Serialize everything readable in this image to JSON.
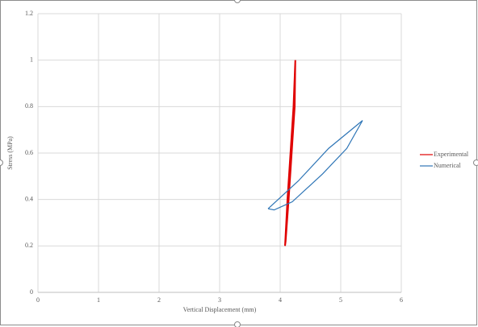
{
  "chart_data": {
    "type": "scatter",
    "xlabel": "Vertical Displacement (mm)",
    "ylabel": "Stress (MPa)",
    "xlim": [
      0,
      6
    ],
    "xticks": [
      0,
      1,
      2,
      3,
      4,
      5,
      6
    ],
    "ylim": [
      0,
      1.2
    ],
    "yticks": [
      0,
      0.2,
      0.4,
      0.6,
      0.8,
      1,
      1.2
    ],
    "grid": true,
    "legend": "right",
    "series": [
      {
        "name": "Experimental",
        "color": "#e00000",
        "x": [
          4.08,
          4.12,
          4.17,
          4.22,
          4.25,
          4.24,
          4.19,
          4.14,
          4.09,
          4.08
        ],
        "values": [
          0.2,
          0.4,
          0.6,
          0.8,
          1.0,
          0.8,
          0.6,
          0.4,
          0.22,
          0.2
        ]
      },
      {
        "name": "Numerical",
        "color": "#2e75b6",
        "x": [
          3.8,
          4.3,
          4.8,
          5.36,
          5.1,
          4.7,
          4.2,
          3.9,
          3.8
        ],
        "values": [
          0.36,
          0.48,
          0.62,
          0.74,
          0.62,
          0.51,
          0.39,
          0.355,
          0.36
        ]
      }
    ]
  }
}
